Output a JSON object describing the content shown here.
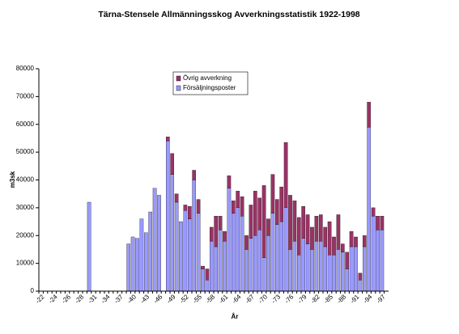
{
  "chart_data": {
    "type": "stacked_bar",
    "title": "Tärna-Stensele Allmänningsskog Avverkningsstatistik 1922-1998",
    "x_label": "År",
    "y_label": "m3sk",
    "categories": [
      "-22",
      null,
      null,
      "-24",
      null,
      null,
      "-26",
      null,
      null,
      "-28",
      null,
      null,
      "-31",
      null,
      null,
      "-34",
      null,
      null,
      "-37",
      null,
      null,
      "-40",
      null,
      null,
      "-43",
      null,
      null,
      "-46",
      null,
      null,
      "-49",
      null,
      null,
      "-52",
      null,
      null,
      "-55",
      null,
      null,
      "-58",
      null,
      null,
      "-61",
      null,
      null,
      "-64",
      null,
      null,
      "-67",
      null,
      null,
      "-70",
      null,
      null,
      "-73",
      null,
      null,
      "-76",
      null,
      null,
      "-79",
      null,
      null,
      "-82",
      null,
      null,
      "-85",
      null,
      null,
      "-88",
      null,
      null,
      "-91",
      null,
      null,
      "-94",
      null,
      null,
      "-97",
      null
    ],
    "series": [
      {
        "name": "Försäljningsposter",
        "color": "#9999ff",
        "values": [
          null,
          null,
          null,
          null,
          null,
          null,
          null,
          null,
          null,
          null,
          null,
          32000,
          null,
          null,
          null,
          null,
          null,
          null,
          null,
          null,
          17000,
          19500,
          19000,
          26000,
          21000,
          28500,
          37000,
          34500,
          null,
          54000,
          42000,
          32000,
          25000,
          29000,
          26000,
          40000,
          28000,
          8000,
          4000,
          18000,
          16000,
          22000,
          18000,
          37000,
          28000,
          30000,
          27000,
          15000,
          19000,
          20000,
          22000,
          12000,
          20000,
          28000,
          24000,
          25000,
          30000,
          15000,
          18000,
          13000,
          19000,
          17000,
          15000,
          18000,
          18000,
          16000,
          13000,
          13000,
          15000,
          14000,
          8000,
          16000,
          16000,
          4000,
          16000,
          59000,
          27000,
          22000,
          22000,
          null
        ]
      },
      {
        "name": "Övrig avverkning",
        "color": "#993366",
        "values": [
          null,
          null,
          null,
          null,
          null,
          null,
          null,
          null,
          null,
          null,
          null,
          0,
          null,
          null,
          null,
          null,
          null,
          null,
          null,
          null,
          0,
          0,
          0,
          0,
          0,
          0,
          0,
          0,
          null,
          1500,
          7500,
          3000,
          0,
          2000,
          4500,
          3500,
          5000,
          1000,
          4000,
          5000,
          11000,
          5000,
          3500,
          4500,
          4500,
          6000,
          7000,
          5000,
          12000,
          16000,
          11500,
          26000,
          6000,
          14000,
          9000,
          12500,
          23500,
          19500,
          14500,
          13500,
          11500,
          10500,
          8000,
          9000,
          9500,
          7000,
          12000,
          6500,
          12500,
          3000,
          6000,
          5500,
          3500,
          2500,
          4000,
          9000,
          3000,
          5000,
          5000,
          null
        ]
      }
    ],
    "ylim": [
      0,
      80000
    ],
    "yticks": [
      0,
      10000,
      20000,
      30000,
      40000,
      50000,
      60000,
      70000,
      80000
    ],
    "legend": "top-left"
  }
}
